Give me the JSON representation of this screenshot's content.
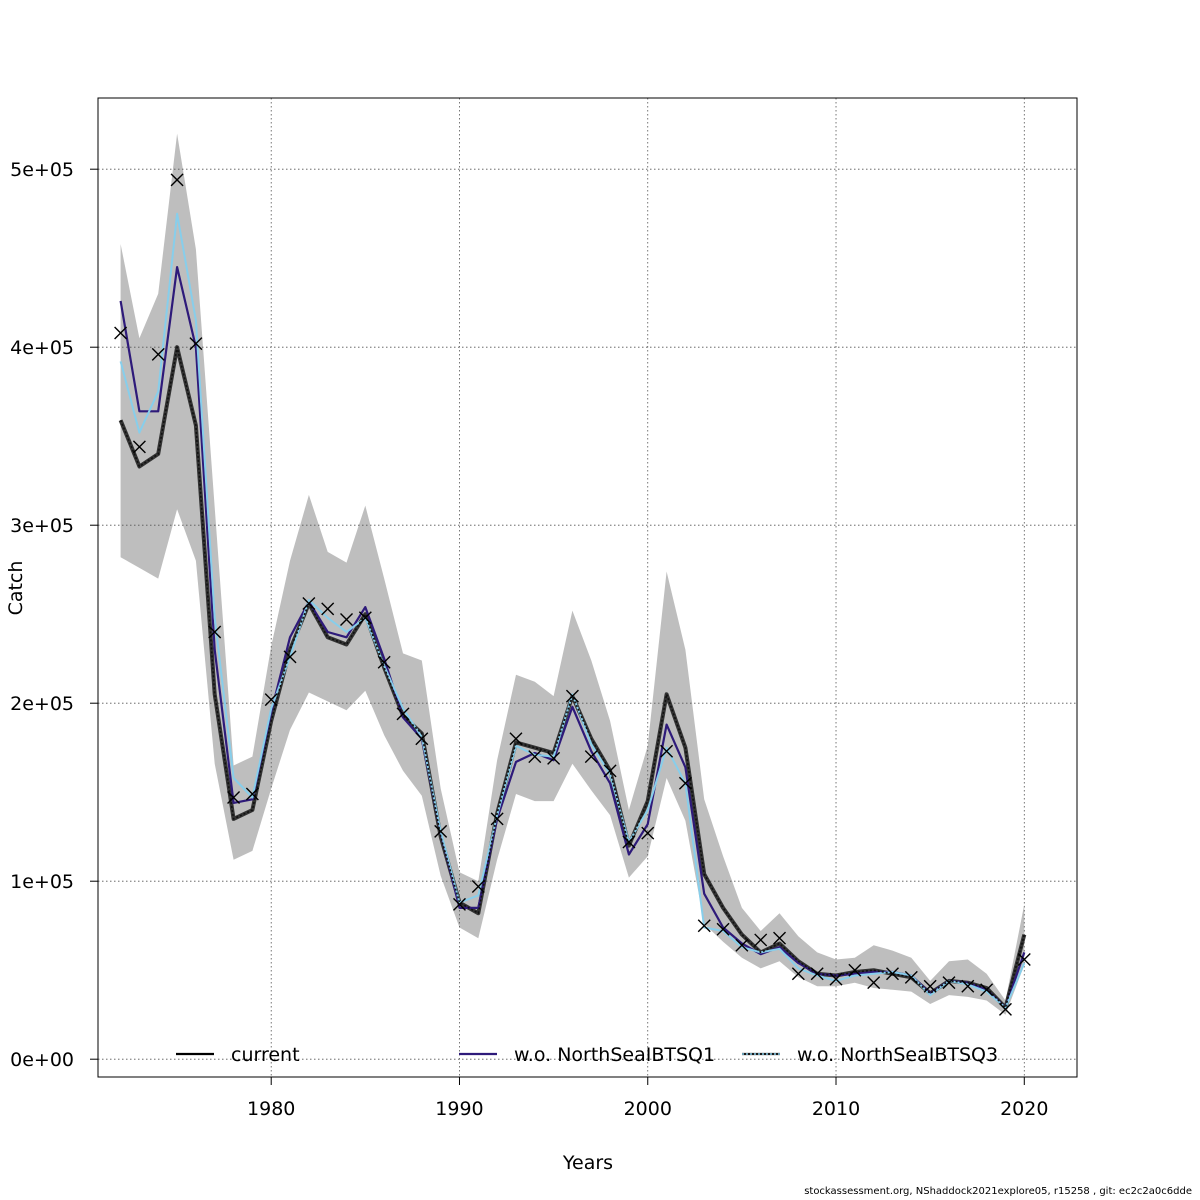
{
  "chart_data": {
    "type": "line",
    "title": "",
    "xlabel": "Years",
    "ylabel": "Catch",
    "xlim": [
      1970.8,
      2022.8
    ],
    "ylim": [
      -10000,
      540000
    ],
    "x_ticks": [
      1980,
      1990,
      2000,
      2010,
      2020
    ],
    "x_tick_labels": [
      "1980",
      "1990",
      "2000",
      "2010",
      "2020"
    ],
    "y_ticks": [
      0,
      100000,
      200000,
      300000,
      400000,
      500000
    ],
    "y_tick_labels": [
      "0e+00",
      "1e+05",
      "2e+05",
      "3e+05",
      "4e+05",
      "5e+05"
    ],
    "grid": true,
    "legend_position": "bottom",
    "x": [
      1972,
      1973,
      1974,
      1975,
      1976,
      1977,
      1978,
      1979,
      1980,
      1981,
      1982,
      1983,
      1984,
      1985,
      1986,
      1987,
      1988,
      1989,
      1990,
      1991,
      1992,
      1993,
      1994,
      1995,
      1996,
      1997,
      1998,
      1999,
      2000,
      2001,
      2002,
      2003,
      2004,
      2005,
      2006,
      2007,
      2008,
      2009,
      2010,
      2011,
      2012,
      2013,
      2014,
      2015,
      2016,
      2017,
      2018,
      2019,
      2020
    ],
    "confidence_band": {
      "name": "current 95% CI",
      "color": "#bebebe",
      "lower": [
        282000,
        276000,
        270000,
        309000,
        280000,
        166000,
        112000,
        117000,
        152000,
        185000,
        206000,
        201000,
        196000,
        207000,
        182000,
        162000,
        148000,
        103000,
        74000,
        68000,
        112000,
        149000,
        145000,
        145000,
        166000,
        151000,
        137000,
        102000,
        114000,
        158000,
        134000,
        76000,
        66000,
        57000,
        51000,
        55000,
        46000,
        41000,
        41000,
        43000,
        40000,
        39000,
        38000,
        31000,
        36000,
        35000,
        33000,
        25000,
        53000
      ],
      "upper": [
        458000,
        405000,
        430000,
        520000,
        455000,
        310000,
        165000,
        170000,
        232000,
        280000,
        317000,
        285000,
        279000,
        311000,
        270000,
        228000,
        224000,
        152000,
        105000,
        100000,
        168000,
        216000,
        212000,
        204000,
        252000,
        224000,
        190000,
        140000,
        176000,
        274000,
        230000,
        146000,
        114000,
        85000,
        72000,
        82000,
        69000,
        60000,
        56000,
        57000,
        64000,
        61000,
        57000,
        44000,
        55000,
        56000,
        48000,
        33000,
        87000
      ]
    },
    "series": [
      {
        "name": "current",
        "color": "#000000",
        "style": "solid",
        "values": [
          359000,
          333000,
          340000,
          400000,
          356000,
          205000,
          135000,
          140000,
          190000,
          230000,
          256000,
          237000,
          233000,
          250000,
          220000,
          193000,
          183000,
          125000,
          88000,
          82000,
          138000,
          178000,
          175000,
          172000,
          204000,
          180000,
          162000,
          120000,
          145000,
          205000,
          175000,
          104000,
          85000,
          70000,
          60000,
          65000,
          55000,
          48000,
          47000,
          49000,
          50000,
          48000,
          46000,
          37000,
          44000,
          43000,
          40000,
          29000,
          70000
        ]
      },
      {
        "name": "w.o. NorthSeaIBTSQ1",
        "color": "#2e1a7a",
        "style": "solid",
        "values": [
          426000,
          364000,
          364000,
          445000,
          400000,
          230000,
          144000,
          146000,
          195000,
          237000,
          257000,
          240000,
          237000,
          254000,
          225000,
          192000,
          180000,
          127000,
          85000,
          85000,
          135000,
          167000,
          172000,
          168000,
          198000,
          173000,
          155000,
          115000,
          132000,
          188000,
          164000,
          93000,
          74000,
          65000,
          59000,
          63000,
          54000,
          48000,
          47000,
          48000,
          49000,
          49000,
          47000,
          37000,
          44000,
          43000,
          39000,
          29000,
          60000
        ]
      },
      {
        "name": "w.o. NorthSeaIBTSQ3",
        "color": "#87ceeb",
        "style": "dotted",
        "values": [
          392000,
          352000,
          375000,
          475000,
          415000,
          248000,
          158000,
          147000,
          197000,
          226000,
          258000,
          248000,
          240000,
          248000,
          221000,
          197000,
          181000,
          128000,
          88000,
          92000,
          137000,
          176000,
          171000,
          170000,
          205000,
          177000,
          160000,
          122000,
          140000,
          175000,
          155000,
          74000,
          72000,
          63000,
          60000,
          62000,
          51000,
          47000,
          44000,
          47000,
          48000,
          49000,
          47000,
          36000,
          44000,
          42000,
          38000,
          29000,
          54000
        ]
      }
    ],
    "observed": {
      "name": "observed catch",
      "marker": "x",
      "color": "#000000",
      "values": [
        408000,
        344000,
        396000,
        494000,
        402000,
        240000,
        147000,
        149000,
        202000,
        226000,
        256000,
        253000,
        247000,
        248000,
        223000,
        194000,
        180000,
        128000,
        87000,
        97000,
        135000,
        180000,
        170000,
        169000,
        204000,
        170000,
        162000,
        122000,
        127000,
        173000,
        155000,
        75000,
        73000,
        64000,
        67000,
        68000,
        48000,
        48000,
        45000,
        50000,
        43000,
        48000,
        46000,
        41000,
        43000,
        41000,
        39000,
        28000,
        56000
      ]
    }
  },
  "footer": {
    "text": "stockassessment.org, NShaddock2021explore05, r15258 , git: ec2c2a0c6dde"
  }
}
